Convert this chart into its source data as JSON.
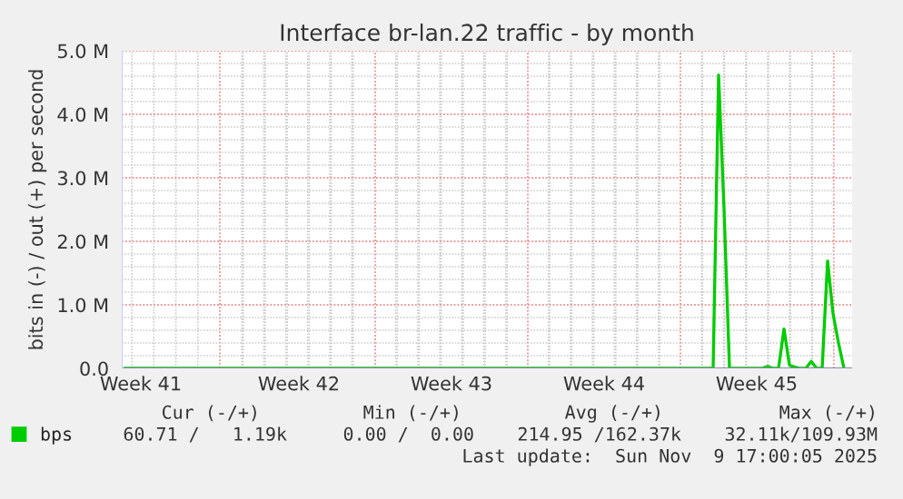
{
  "chart_data": {
    "type": "line",
    "title": "Interface br-lan.22 traffic - by month",
    "ylabel": "bits in (-) / out (+) per second",
    "categories": [
      null,
      null,
      null,
      "Week 41",
      null,
      null,
      null,
      null,
      null,
      null,
      null,
      null,
      null,
      null,
      null,
      null,
      null,
      null,
      null,
      null,
      null,
      null,
      null,
      null,
      null,
      null,
      null,
      null,
      null,
      null,
      null,
      null,
      "Week 42",
      null,
      null,
      null,
      null,
      null,
      null,
      null,
      null,
      null,
      null,
      null,
      null,
      null,
      null,
      null,
      null,
      null,
      null,
      null,
      null,
      null,
      null,
      null,
      null,
      null,
      null,
      null,
      "Week 43",
      null,
      null,
      null,
      null,
      null,
      null,
      null,
      null,
      null,
      null,
      null,
      null,
      null,
      null,
      null,
      null,
      null,
      null,
      null,
      null,
      null,
      null,
      null,
      null,
      null,
      null,
      null,
      "Week 44",
      null,
      null,
      null,
      null,
      null,
      null,
      null,
      null,
      null,
      null,
      null,
      null,
      null,
      null,
      null,
      null,
      null,
      null,
      null,
      null,
      null,
      null,
      null,
      null,
      null,
      null,
      null,
      "Week 45",
      null,
      null,
      null,
      null,
      null,
      null,
      null,
      null,
      null,
      null,
      null,
      null,
      null,
      null,
      null,
      null,
      null
    ],
    "series": [
      {
        "name": "bps",
        "color": "#00cc00",
        "values": [
          0,
          0,
          0,
          0,
          0,
          0,
          0,
          0,
          0,
          0,
          0,
          0,
          0,
          0,
          0,
          0,
          0,
          0,
          0,
          0,
          0,
          0,
          0,
          0,
          0,
          0,
          0,
          0,
          0,
          0,
          0,
          0,
          0,
          0,
          0,
          0,
          0,
          0,
          0,
          0,
          0,
          0,
          0,
          0,
          0,
          0,
          0,
          0,
          0,
          0,
          0,
          0,
          0,
          0,
          0,
          0,
          0,
          0,
          0,
          0,
          0,
          0,
          0,
          0,
          0,
          0,
          0,
          0,
          0,
          0,
          0,
          0,
          0,
          0,
          0,
          0,
          0,
          0,
          0,
          0,
          0,
          0,
          0,
          0,
          0,
          0,
          0,
          0,
          0,
          0,
          0,
          0,
          0,
          0,
          0,
          0,
          0,
          0,
          0,
          0,
          0,
          0,
          0,
          0,
          0,
          0,
          0,
          0,
          0,
          4.62,
          2.51,
          0,
          0,
          0,
          0,
          0,
          0,
          0,
          0.03,
          0,
          0,
          0.62,
          0.05,
          0.02,
          0,
          0,
          0.11,
          0,
          0,
          1.69,
          0.86,
          0.4,
          0,
          null
        ]
      }
    ],
    "ylim": [
      0,
      5
    ],
    "yticks": [
      {
        "value": 0,
        "label": "0.0"
      },
      {
        "value": 1,
        "label": "1.0 M"
      },
      {
        "value": 2,
        "label": "2.0 M"
      },
      {
        "value": 3,
        "label": "3.0 M"
      },
      {
        "value": 4,
        "label": "4.0 M"
      },
      {
        "value": 5,
        "label": "5.0 M"
      }
    ],
    "grid": true,
    "legend": "bottom left",
    "annotations": [
      "Cur (-/+)",
      "Min (-/+)",
      "Avg (-/+)",
      "Max (-/+)",
      "60.71 /   1.19k",
      "0.00 /  0.00",
      "214.95 /162.37k",
      "32.11k/109.93M",
      "Last update:  Sun Nov  9 17:00:05 2025"
    ]
  }
}
